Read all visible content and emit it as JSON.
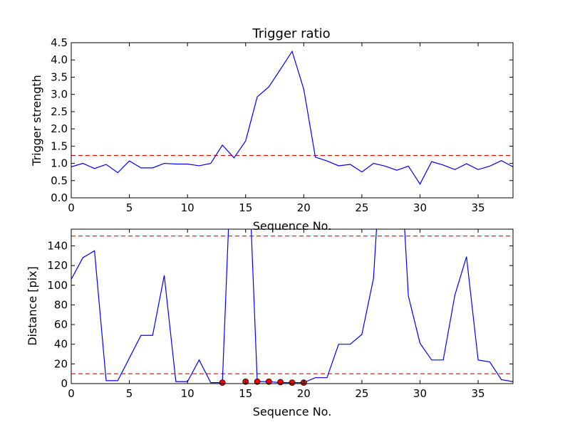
{
  "chart_data": [
    {
      "type": "line",
      "title": "Trigger ratio",
      "xlabel": "Sequence No.",
      "ylabel": "Trigger strength",
      "xlim": [
        0,
        38
      ],
      "ylim": [
        0,
        4.5
      ],
      "xticks": [
        "0",
        "5",
        "10",
        "15",
        "20",
        "25",
        "30",
        "35"
      ],
      "yticks": [
        "0.0",
        "0.5",
        "1.0",
        "1.5",
        "2.0",
        "2.5",
        "3.0",
        "3.5",
        "4.0",
        "4.5"
      ],
      "line_color": "#0000ff",
      "series": [
        {
          "x": [
            0,
            1,
            2,
            3,
            4,
            5,
            6,
            7,
            8,
            9,
            10,
            11,
            12,
            13,
            14,
            15,
            16,
            17,
            18,
            19,
            20,
            21,
            22,
            23,
            24,
            25,
            26,
            27,
            28,
            29,
            30,
            31,
            32,
            33,
            34,
            35,
            36,
            37,
            38
          ],
          "values": [
            0.9,
            1.0,
            0.85,
            0.97,
            0.73,
            1.07,
            0.87,
            0.87,
            1.0,
            0.98,
            0.98,
            0.93,
            1.0,
            1.53,
            1.16,
            1.65,
            2.93,
            3.22,
            3.73,
            4.25,
            3.15,
            1.18,
            1.07,
            0.93,
            0.97,
            0.75,
            1.0,
            0.92,
            0.8,
            0.92,
            0.4,
            1.05,
            0.95,
            0.82,
            0.99,
            0.82,
            0.92,
            1.08,
            0.9
          ]
        }
      ],
      "reference_lines": [
        {
          "y": 1.23,
          "color": "#ff0000",
          "style": "dashed"
        }
      ]
    },
    {
      "type": "line",
      "title": "",
      "xlabel": "Sequence No.",
      "ylabel": "Distance [pix]",
      "xlim": [
        0,
        38
      ],
      "ylim": [
        0,
        157
      ],
      "xticks": [
        "0",
        "5",
        "10",
        "15",
        "20",
        "25",
        "30",
        "35"
      ],
      "yticks": [
        "0",
        "20",
        "40",
        "60",
        "80",
        "100",
        "120",
        "140"
      ],
      "line_color": "#0000ff",
      "series": [
        {
          "x": [
            0,
            1,
            2,
            3,
            4,
            5,
            6,
            7,
            8,
            9,
            10,
            11,
            12,
            13,
            14,
            15,
            16,
            17,
            18,
            19,
            20,
            21,
            22,
            23,
            24,
            25,
            26,
            27,
            28,
            29,
            30,
            31,
            32,
            33,
            34,
            35,
            36,
            37,
            38
          ],
          "values": [
            106,
            128,
            135,
            3,
            3,
            26,
            49,
            49,
            110,
            2,
            2,
            24,
            1,
            1,
            300,
            300,
            2,
            2,
            1,
            1,
            1,
            6,
            6,
            40,
            40,
            50,
            107,
            300,
            300,
            89,
            41,
            24,
            24,
            90,
            129,
            24,
            22,
            4,
            2
          ]
        }
      ],
      "markers": {
        "color": "#ff0000",
        "x": [
          13,
          15,
          16,
          17,
          18,
          19,
          20
        ],
        "values": [
          1,
          2,
          2,
          2,
          1.5,
          1,
          1
        ]
      },
      "reference_lines": [
        {
          "y": 150,
          "color": "#ff0000",
          "style": "dashed"
        },
        {
          "y": 10,
          "color": "#ff0000",
          "style": "dashed"
        }
      ]
    }
  ]
}
